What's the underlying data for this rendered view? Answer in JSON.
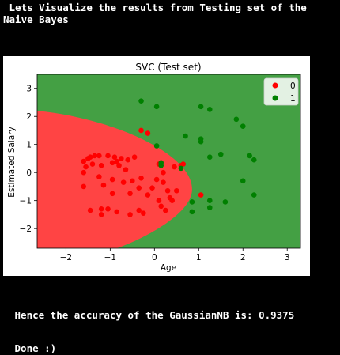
{
  "console": {
    "intro": " Lets Visualize the results from Testing set of the Naive Bayes",
    "accuracy": " Hence the accuracy of the GaussianNB is: 0.9375",
    "done": " Done :)"
  },
  "colors": {
    "background": "#000000",
    "region_0": "#ff4444",
    "region_1": "#44a044",
    "point_0": "#ff0000",
    "point_1": "#008000"
  },
  "chart_data": {
    "type": "scatter",
    "title": "SVC (Test set)",
    "xlabel": "Age",
    "ylabel": "Estimated Salary",
    "xlim": [
      -2.65,
      3.3
    ],
    "ylim": [
      -2.7,
      3.5
    ],
    "xticks": [
      -2,
      -1,
      0,
      1,
      2,
      3
    ],
    "yticks": [
      -2,
      -1,
      0,
      1,
      2,
      3
    ],
    "legend_position": "top-right",
    "decision_boundary": {
      "description": "class 0 region is a parabola-like area on the left, vertex near Age 0.85, Estimated Salary -0.6",
      "vertex": [
        0.85,
        -0.6
      ],
      "top_left": [
        -2.65,
        2.2
      ],
      "bottom": [
        -0.85,
        -2.7
      ]
    },
    "series": [
      {
        "name": "0",
        "points": [
          [
            -1.6,
            0.4
          ],
          [
            -1.5,
            0.5
          ],
          [
            -1.45,
            0.55
          ],
          [
            -1.35,
            0.6
          ],
          [
            -1.25,
            0.6
          ],
          [
            -1.55,
            0.2
          ],
          [
            -1.4,
            0.3
          ],
          [
            -1.2,
            0.25
          ],
          [
            -1.05,
            0.6
          ],
          [
            -0.9,
            0.55
          ],
          [
            -0.85,
            0.4
          ],
          [
            -0.75,
            0.5
          ],
          [
            -0.6,
            0.45
          ],
          [
            -0.45,
            0.55
          ],
          [
            -0.95,
            0.35
          ],
          [
            -0.8,
            0.25
          ],
          [
            -0.65,
            0.1
          ],
          [
            -1.6,
            0.0
          ],
          [
            -1.25,
            -0.15
          ],
          [
            -0.95,
            -0.25
          ],
          [
            -0.7,
            -0.35
          ],
          [
            -0.5,
            -0.3
          ],
          [
            -0.3,
            -0.2
          ],
          [
            -1.6,
            -0.5
          ],
          [
            -1.15,
            -0.45
          ],
          [
            -0.95,
            -0.75
          ],
          [
            -0.55,
            -0.75
          ],
          [
            -0.35,
            -0.55
          ],
          [
            -0.15,
            -0.8
          ],
          [
            -1.05,
            -1.3
          ],
          [
            -0.85,
            -1.4
          ],
          [
            -1.45,
            -1.35
          ],
          [
            -1.2,
            -1.3
          ],
          [
            -1.2,
            -1.5
          ],
          [
            -0.55,
            -1.5
          ],
          [
            -0.35,
            -1.35
          ],
          [
            -0.25,
            -1.45
          ],
          [
            -0.05,
            -0.55
          ],
          [
            0.2,
            -0.35
          ],
          [
            0.3,
            -0.65
          ],
          [
            0.35,
            -0.9
          ],
          [
            0.1,
            -1.0
          ],
          [
            0.15,
            -1.2
          ],
          [
            0.25,
            -1.35
          ],
          [
            0.4,
            -1.0
          ],
          [
            0.5,
            -0.65
          ],
          [
            0.05,
            -0.25
          ],
          [
            0.2,
            0.0
          ],
          [
            0.45,
            0.2
          ],
          [
            0.6,
            0.25
          ],
          [
            0.65,
            0.3
          ],
          [
            0.1,
            0.3
          ],
          [
            -0.3,
            1.5
          ],
          [
            -0.15,
            1.4
          ],
          [
            1.05,
            -0.8
          ]
        ]
      },
      {
        "name": "1",
        "points": [
          [
            -0.3,
            2.55
          ],
          [
            0.05,
            2.35
          ],
          [
            1.05,
            2.35
          ],
          [
            1.25,
            2.25
          ],
          [
            1.85,
            1.9
          ],
          [
            2.0,
            1.65
          ],
          [
            0.7,
            1.3
          ],
          [
            1.05,
            1.2
          ],
          [
            1.05,
            1.1
          ],
          [
            0.05,
            0.95
          ],
          [
            0.15,
            0.35
          ],
          [
            0.15,
            0.25
          ],
          [
            0.6,
            0.15
          ],
          [
            1.25,
            0.55
          ],
          [
            1.5,
            0.65
          ],
          [
            2.15,
            0.6
          ],
          [
            2.25,
            0.45
          ],
          [
            2.0,
            -0.3
          ],
          [
            2.25,
            -0.8
          ],
          [
            1.25,
            -1.0
          ],
          [
            1.25,
            -1.25
          ],
          [
            0.85,
            -1.05
          ],
          [
            0.85,
            -1.4
          ],
          [
            1.6,
            -1.05
          ]
        ]
      }
    ]
  }
}
